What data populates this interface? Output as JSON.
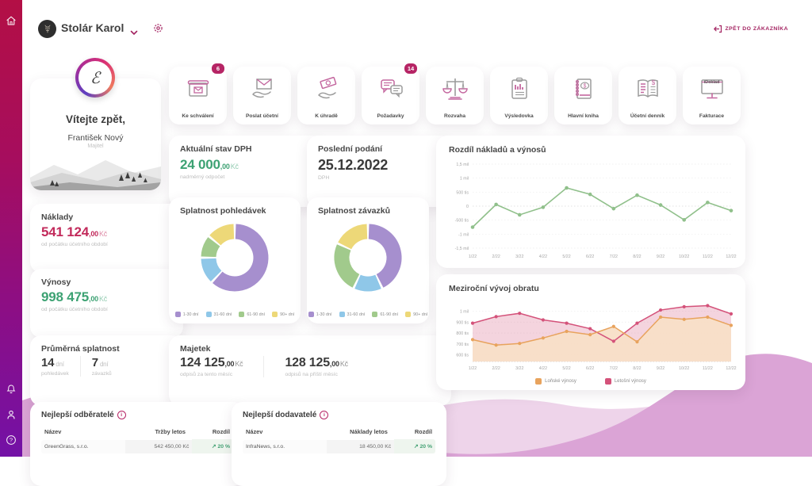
{
  "topbar": {
    "company_name": "Stolár Karol",
    "back_button_label": "ZPĚT DO ZÁKAZNÍKA"
  },
  "sidebar": {
    "icons": [
      "home-icon",
      "notifications-bell-icon",
      "profile-icon",
      "help-icon"
    ]
  },
  "welcome": {
    "logo_letter": "ℰ",
    "greeting": "Vítejte zpět,",
    "user_name": "František Nový",
    "user_role": "Majitel"
  },
  "quick_actions": [
    {
      "label": "Ke schválení",
      "icon": "mailbox-icon",
      "badge": "6"
    },
    {
      "label": "Poslat účetní",
      "icon": "envelope-hand-icon"
    },
    {
      "label": "K úhradě",
      "icon": "money-hand-icon"
    },
    {
      "label": "Požadavky",
      "icon": "chat-icon",
      "badge": "14"
    },
    {
      "label": "Rozvaha",
      "icon": "scales-icon"
    },
    {
      "label": "Výsledovka",
      "icon": "clipboard-chart-icon"
    },
    {
      "label": "Hlavní kniha",
      "icon": "ledger-icon"
    },
    {
      "label": "Účetní denník",
      "icon": "journal-icon"
    },
    {
      "label": "Fakturace",
      "icon": "monitor-icon",
      "icon_text": "iDoklad"
    }
  ],
  "cards": {
    "dph": {
      "title": "Aktuální stav DPH",
      "value": "24 000",
      "cents": ",00",
      "currency": "Kč",
      "note": "nadměrný odpočet"
    },
    "podani": {
      "title": "Poslední podání",
      "value": "25.12.2022",
      "note": "DPH"
    },
    "naklady": {
      "title": "Náklady",
      "value": "541 124",
      "cents": ",00",
      "currency": "Kč",
      "note": "od počátku účetního období"
    },
    "vynosy": {
      "title": "Výnosy",
      "value": "998 475",
      "cents": ",00",
      "currency": "Kč",
      "note": "od počátku účetního období"
    },
    "splatnost": {
      "title": "Průměrná splatnost",
      "items": [
        {
          "value": "14",
          "unit": "dní",
          "note": "pohledávek"
        },
        {
          "value": "7",
          "unit": "dní",
          "note": "závazků"
        }
      ]
    },
    "majetek": {
      "title": "Majetek",
      "items": [
        {
          "value": "124 125",
          "cents": ",00",
          "currency": "Kč",
          "note": "odpisů za tento měsíc"
        },
        {
          "value": "128 125",
          "cents": ",00",
          "currency": "Kč",
          "note": "odpisů na příští měsíc"
        }
      ]
    }
  },
  "chart_data": [
    {
      "type": "pie",
      "title": "Splatnost pohledávek",
      "labels": [
        "1-30 dní",
        "31-60 dní",
        "61-90 dní",
        "90+ dní"
      ],
      "values": [
        62,
        13,
        11,
        14
      ],
      "colors": [
        "#a68fce",
        "#8fc7e8",
        "#a1ca8c",
        "#edd878"
      ],
      "legend_position": "bottom"
    },
    {
      "type": "pie",
      "title": "Splatnost závazků",
      "labels": [
        "1-30 dní",
        "31-60 dní",
        "61-90 dní",
        "90+ dní"
      ],
      "values": [
        43,
        14,
        25,
        18
      ],
      "colors": [
        "#a68fce",
        "#8fc7e8",
        "#a1ca8c",
        "#edd878"
      ],
      "legend_position": "bottom"
    },
    {
      "type": "line",
      "title": "Rozdíl nákladů a výnosů",
      "x": [
        "1/22",
        "2/22",
        "3/22",
        "4/22",
        "5/22",
        "6/22",
        "7/22",
        "8/22",
        "9/22",
        "10/22",
        "11/22",
        "12/22"
      ],
      "values": [
        -750000,
        60000,
        -310000,
        -40000,
        650000,
        420000,
        -90000,
        390000,
        40000,
        -490000,
        130000,
        -160000
      ],
      "ylim": [
        -1500000,
        1500000
      ],
      "ytick_values": [
        1500000,
        1000000,
        500000,
        0,
        -500000,
        -1000000,
        -1500000
      ],
      "ytick_labels": [
        "1,5 mil",
        "1 mil",
        "500 tis",
        "0",
        "-500 tis",
        "-1 mil",
        "-1,5 mil"
      ],
      "color": "#90c08b",
      "grid": true
    },
    {
      "type": "area",
      "title": "Meziroční vývoj obratu",
      "x": [
        "1/22",
        "2/22",
        "3/22",
        "4/22",
        "5/22",
        "6/22",
        "7/22",
        "8/22",
        "9/22",
        "10/22",
        "11/22",
        "12/22"
      ],
      "series": [
        {
          "name": "Loňské výnosy",
          "color": "#e8a35d",
          "values": [
            740000,
            690000,
            705000,
            755000,
            815000,
            785000,
            860000,
            720000,
            945000,
            925000,
            945000,
            870000
          ]
        },
        {
          "name": "Letošní výnosy",
          "color": "#d4527a",
          "values": [
            890000,
            950000,
            980000,
            920000,
            890000,
            840000,
            725000,
            890000,
            1010000,
            1040000,
            1050000,
            975000
          ]
        }
      ],
      "ylim": [
        540000,
        1090000
      ],
      "ytick_values": [
        1000000,
        900000,
        800000,
        700000,
        600000
      ],
      "ytick_labels": [
        "1 mil",
        "900 tis",
        "800 tis",
        "700 tis",
        "600 tis"
      ],
      "legend_position": "bottom",
      "grid": true
    }
  ],
  "tables": [
    {
      "title": "Nejlepší odběratelé",
      "columns": [
        "Název",
        "Tržby letos",
        "Rozdíl"
      ],
      "rows": [
        {
          "name": "GreenGrass, s.r.o.",
          "amount": "542 450,00 Kč",
          "diff_arrow": "↗",
          "diff": "20 %"
        }
      ]
    },
    {
      "title": "Nejlepší dodavatelé",
      "columns": [
        "Název",
        "Náklady letos",
        "Rozdíl"
      ],
      "rows": [
        {
          "name": "InfraNews, s.r.o.",
          "amount": "18 450,00 Kč",
          "diff_arrow": "↗",
          "diff": "20 %"
        }
      ]
    }
  ],
  "colors": {
    "accent": "#ae1e64",
    "positive": "#3da273",
    "negative": "#c22a5b",
    "wave_main": "#dba4d6",
    "wave_light": "#eed4ea"
  }
}
